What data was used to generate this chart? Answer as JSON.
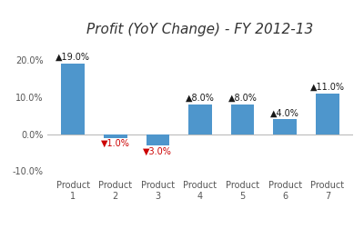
{
  "title": "Profit (YoY Change) - FY 2012-13",
  "categories": [
    "Product\n1",
    "Product\n2",
    "Product\n3",
    "Product\n4",
    "Product\n5",
    "Product\n6",
    "Product\n7"
  ],
  "values": [
    19.0,
    -1.0,
    -3.0,
    8.0,
    8.0,
    4.0,
    11.0
  ],
  "bar_color": "#4e96cc",
  "label_color_pos": "#1a1a1a",
  "label_color_neg": "#cc0000",
  "ylim": [
    -12,
    25
  ],
  "ytick_vals": [
    -10,
    0,
    10,
    20
  ],
  "ytick_labels": [
    "-10.0%",
    "0.0%",
    "10.0%",
    "20.0%"
  ],
  "title_fontsize": 11,
  "title_style": "italic",
  "background_color": "#ffffff",
  "zero_line_color": "#bbbbbb"
}
